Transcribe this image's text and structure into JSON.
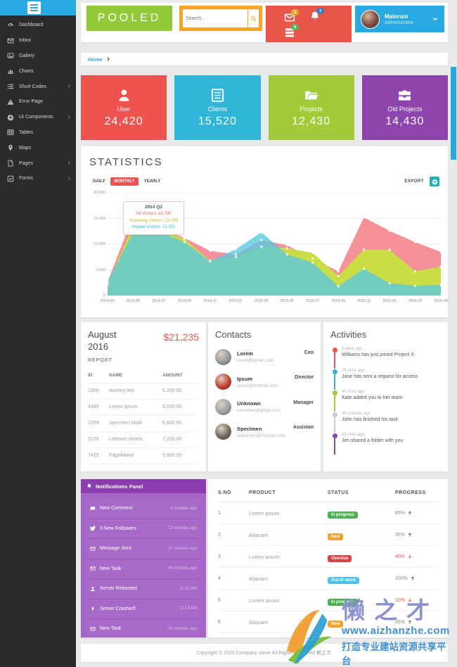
{
  "header": {
    "logo": "POOLED",
    "search": {
      "placeholder": "Search..."
    },
    "alerts": [
      {
        "icon": "envelope",
        "badge": "3",
        "badge_color": "#f5a623"
      },
      {
        "icon": "bell",
        "badge": "3",
        "badge_color": "#3a7abd"
      },
      {
        "icon": "tasks",
        "badge": "9",
        "badge_color": "#56b45d"
      }
    ],
    "user": {
      "name": "Malorum",
      "role": "Administrator"
    }
  },
  "sidebar": {
    "items": [
      {
        "label": "Dashboard",
        "icon": "gauge",
        "submenu": false
      },
      {
        "label": "Inbox",
        "icon": "envelope",
        "submenu": false
      },
      {
        "label": "Gallery",
        "icon": "image",
        "submenu": false
      },
      {
        "label": "Charts",
        "icon": "bar-chart",
        "submenu": false
      },
      {
        "label": "Short Codes",
        "icon": "list",
        "submenu": true
      },
      {
        "label": "Error Page",
        "icon": "warning",
        "submenu": false
      },
      {
        "label": "UI Components",
        "icon": "gear",
        "submenu": true
      },
      {
        "label": "Tables",
        "icon": "table",
        "submenu": false
      },
      {
        "label": "Maps",
        "icon": "pin",
        "submenu": false
      },
      {
        "label": "Pages",
        "icon": "file",
        "submenu": true
      },
      {
        "label": "Forms",
        "icon": "check-square",
        "submenu": true
      }
    ]
  },
  "breadcrumb": {
    "home": "Home"
  },
  "stat_cards": [
    {
      "label": "User",
      "value": "24,420",
      "color": "#ef5350",
      "icon": "person"
    },
    {
      "label": "Clients",
      "value": "15,520",
      "color": "#2fb6d8",
      "icon": "clients"
    },
    {
      "label": "Projects",
      "value": "12,430",
      "color": "#a2cb39",
      "icon": "folder"
    },
    {
      "label": "Old Projects",
      "value": "14,430",
      "color": "#8e44ad",
      "icon": "briefcase"
    }
  ],
  "statistics": {
    "title": "STATISTICS",
    "tabs": [
      "DAILY",
      "MONTHLY",
      "YEARLY"
    ],
    "active_tab": "MONTHLY",
    "export_label": "EXPORT",
    "tooltip": {
      "title": "2014 Q2",
      "lines": [
        {
          "text": "All Visitors: 15,780",
          "color": "#e9615e"
        },
        {
          "text": "Returning Visitors: 13,799",
          "color": "#b6bc30"
        },
        {
          "text": "Unique Visitors: 12,051",
          "color": "#35b8c6"
        }
      ]
    }
  },
  "chart_data": {
    "type": "area",
    "title": "STATISTICS",
    "xlabel": "",
    "ylabel": "",
    "grid": true,
    "legend_position": "tooltip-only",
    "ylim": [
      0,
      20000
    ],
    "yticks": [
      0,
      5000,
      10000,
      15000,
      20000
    ],
    "ytick_labels_top_down": [
      "20,000",
      "15,000",
      "10,000",
      "5,000",
      "0"
    ],
    "categories": [
      "2014-03",
      "2014-05",
      "2014-07",
      "2014-09",
      "2014-11",
      "2015-01",
      "2015-03",
      "2015-05",
      "2015-07",
      "2015-09",
      "2015-11",
      "2016-01",
      "2016-03",
      "2016-05"
    ],
    "series": [
      {
        "name": "All Visitors",
        "color": "#f48b93",
        "opacity": 0.95,
        "values": [
          2600,
          15600,
          13000,
          11200,
          8700,
          8000,
          10800,
          9800,
          7200,
          4700,
          15200,
          12600,
          10400,
          8500
        ]
      },
      {
        "name": "Returning Visitors",
        "color": "#cbdd45",
        "opacity": 1,
        "values": [
          2200,
          13700,
          12800,
          11000,
          6800,
          7500,
          9500,
          9200,
          8300,
          3800,
          8900,
          8900,
          4700,
          5600
        ]
      },
      {
        "name": "Unique Visitors",
        "color": "#58c8e0",
        "opacity": 0.78,
        "values": [
          2700,
          12300,
          12500,
          10400,
          6700,
          9000,
          12300,
          8000,
          6400,
          1800,
          5200,
          2400,
          1900,
          2100
        ]
      }
    ]
  },
  "report": {
    "period": "August 2016",
    "total": "$21,235",
    "label": "REPORT",
    "columns": [
      "ID",
      "NAME",
      "AMOUNT"
    ],
    "rows": [
      [
        "2356",
        "dummy text",
        "6,200.00"
      ],
      [
        "4589",
        "Lorem Ipsum",
        "6,500.00"
      ],
      [
        "3269",
        "specimen book",
        "6,800.00"
      ],
      [
        "5126",
        "Letraset sheets",
        "7,200.00"
      ],
      [
        "7425",
        "PageMaker",
        "5,900.00"
      ]
    ]
  },
  "contacts": {
    "title": "Contacts",
    "items": [
      {
        "name": "Lorem",
        "email": "lorem@gmail.com",
        "role": "Ceo",
        "avatar_color": "#8e959b"
      },
      {
        "name": "Ipsum",
        "email": "ipsum@hotmail.com",
        "role": "Director",
        "avatar_color": "#c0392b"
      },
      {
        "name": "Unknown",
        "email": "unknown@gmail.com",
        "role": "Manager",
        "avatar_color": "#95a0a6"
      },
      {
        "name": "Specimen",
        "email": "specimen@hotmail.com",
        "role": "Assistan",
        "avatar_color": "#6f6257"
      }
    ]
  },
  "activities": {
    "title": "Activities",
    "items": [
      {
        "time": "5 mins ago",
        "text": "Williams has just joined Project X",
        "color": "#ef5350"
      },
      {
        "time": "25 mins ago",
        "text": "Jane has sent a request for access",
        "color": "#3bafda"
      },
      {
        "time": "40 mins ago",
        "text": "Kate added you to her team",
        "color": "#a0c93c"
      },
      {
        "time": "45 minutes ago",
        "text": "John has finished his task",
        "color": "#cccccc"
      },
      {
        "time": "55 mins ago",
        "text": "Jim shared a folder with you",
        "color": "#8e44ad"
      }
    ]
  },
  "notifications_panel": {
    "title": "Notifications Panel",
    "items": [
      {
        "icon": "comment",
        "label": "New Comment",
        "time": "4 minutes ago"
      },
      {
        "icon": "twitter",
        "label": "3 New Followers",
        "time": "12 minutes ago"
      },
      {
        "icon": "envelope",
        "label": "Message Sent",
        "time": "27 minutes ago"
      },
      {
        "icon": "envelope",
        "label": "New Task",
        "time": "43 minutes ago"
      },
      {
        "icon": "person",
        "label": "Server Rebooted",
        "time": "11:32 AM"
      },
      {
        "icon": "bolt",
        "label": "Server Crashed!",
        "time": "11:13 AM"
      },
      {
        "icon": "envelope",
        "label": "New Task",
        "time": "43 minutes ago"
      }
    ]
  },
  "products": {
    "columns": [
      "S.NO",
      "PRODUCT",
      "STATUS",
      "PROGRESS"
    ],
    "rows": [
      {
        "no": "1",
        "product": "Lorem ipsum",
        "status": "In progress",
        "status_color": "#4caf50",
        "progress": "85%",
        "trend": "up"
      },
      {
        "no": "2",
        "product": "Aliquam",
        "status": "New",
        "status_color": "#f0a32f",
        "progress": "35%",
        "trend": "up"
      },
      {
        "no": "3",
        "product": "Lorem ipsum",
        "status": "Overdue",
        "status_color": "#d64541",
        "progress": "40%",
        "trend": "down"
      },
      {
        "no": "4",
        "product": "Aliquam",
        "status": "Out of stock",
        "status_color": "#4fc1e9",
        "progress": "100%",
        "trend": "up"
      },
      {
        "no": "5",
        "product": "Lorem ipsum",
        "status": "In progress",
        "status_color": "#4caf50",
        "progress": "10%",
        "trend": "down"
      },
      {
        "no": "6",
        "product": "Aliquam",
        "status": "New",
        "status_color": "#f0a32f",
        "progress": "36%",
        "trend": "up"
      }
    ]
  },
  "footer": {
    "text": "Copyright © 2020.Company name All Rights Reserved 赖之才."
  },
  "watermark": {
    "brand": "懒之才",
    "url": "www.aizhanzhe.com",
    "slogan": "打造专业建站资源共享平台"
  }
}
